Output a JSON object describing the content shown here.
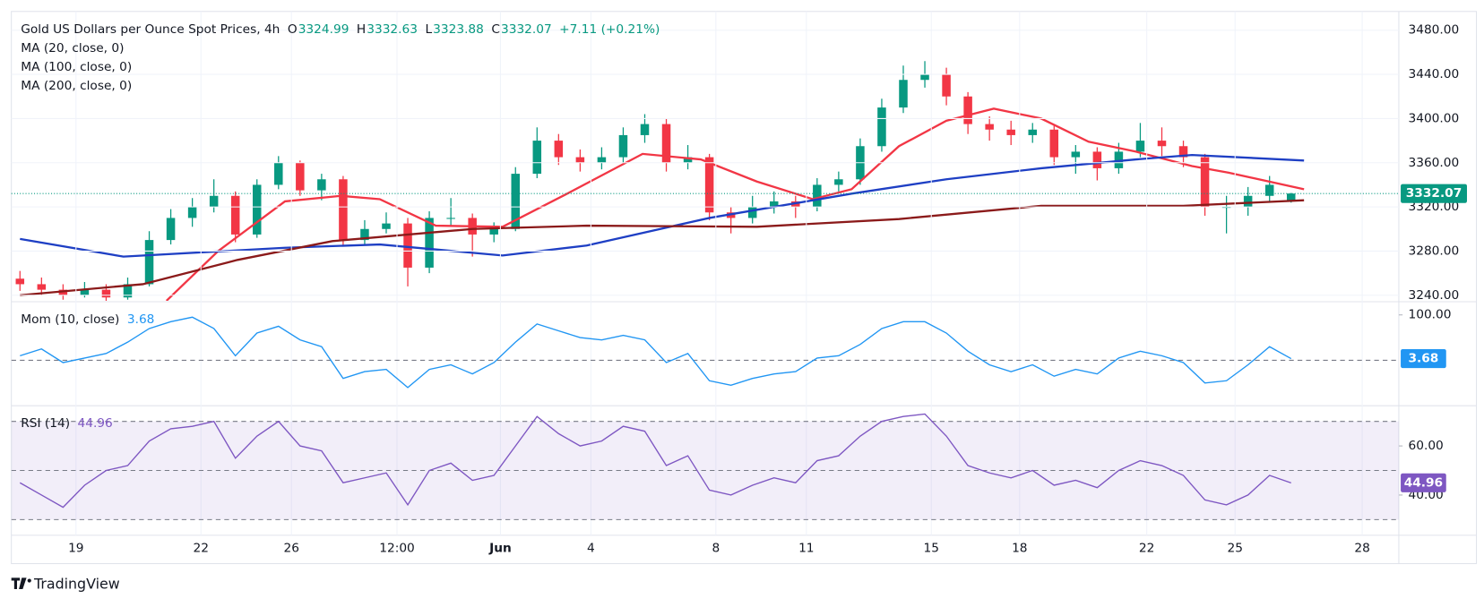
{
  "chart_data": {
    "type": "candlestick",
    "title": "Gold US Dollars per Ounce Spot Prices, 4h",
    "ohlc_labels": [
      "O",
      "H",
      "L",
      "C"
    ],
    "change_label": "+7.11 (+0.21%)",
    "up_color": "#089981",
    "down_color": "#f23645",
    "open": [
      3255,
      3250,
      3245,
      3240,
      3245,
      3238,
      3250,
      3290,
      3310,
      3320,
      3330,
      3295,
      3340,
      3360,
      3335,
      3345,
      3290,
      3300,
      3305,
      3265,
      3310,
      3310,
      3295,
      3300,
      3350,
      3380,
      3365,
      3360,
      3365,
      3385,
      3395,
      3360,
      3365,
      3315,
      3310,
      3320,
      3325,
      3320,
      3340,
      3345,
      3375,
      3410,
      3435,
      3440,
      3420,
      3395,
      3390,
      3385,
      3390,
      3365,
      3370,
      3355,
      3370,
      3380,
      3375,
      3365,
      3320,
      3320,
      3330,
      3324.99
    ],
    "high": [
      3262,
      3256,
      3250,
      3252,
      3250,
      3256,
      3298,
      3318,
      3328,
      3345,
      3334,
      3345,
      3366,
      3362,
      3350,
      3348,
      3308,
      3315,
      3310,
      3316,
      3328,
      3314,
      3306,
      3356,
      3392,
      3386,
      3372,
      3374,
      3392,
      3404,
      3400,
      3376,
      3368,
      3320,
      3330,
      3334,
      3330,
      3346,
      3352,
      3382,
      3418,
      3448,
      3452,
      3446,
      3424,
      3402,
      3398,
      3396,
      3394,
      3376,
      3374,
      3378,
      3396,
      3392,
      3380,
      3368,
      3330,
      3338,
      3348,
      3332.63
    ],
    "low": [
      3244,
      3240,
      3236,
      3238,
      3232,
      3236,
      3248,
      3286,
      3302,
      3315,
      3288,
      3292,
      3336,
      3330,
      3326,
      3284,
      3285,
      3296,
      3248,
      3260,
      3302,
      3275,
      3288,
      3298,
      3346,
      3358,
      3352,
      3354,
      3360,
      3378,
      3352,
      3354,
      3308,
      3296,
      3305,
      3314,
      3310,
      3316,
      3334,
      3340,
      3370,
      3405,
      3428,
      3412,
      3386,
      3380,
      3376,
      3378,
      3358,
      3350,
      3344,
      3350,
      3365,
      3366,
      3356,
      3312,
      3296,
      3312,
      3324,
      3323.88
    ],
    "close": [
      3250,
      3245,
      3240,
      3245,
      3238,
      3250,
      3290,
      3310,
      3320,
      3330,
      3295,
      3340,
      3360,
      3335,
      3345,
      3290,
      3300,
      3305,
      3265,
      3310,
      3310,
      3295,
      3300,
      3350,
      3380,
      3365,
      3360,
      3365,
      3385,
      3395,
      3360,
      3365,
      3315,
      3310,
      3320,
      3325,
      3320,
      3340,
      3345,
      3375,
      3410,
      3435,
      3440,
      3420,
      3395,
      3390,
      3385,
      3390,
      3365,
      3370,
      3355,
      3370,
      3380,
      3375,
      3365,
      3320,
      3320,
      3330,
      3340,
      3332.07
    ],
    "last_color": "#089981",
    "series": [
      {
        "name": "MA (20, close, 0)",
        "color": "#f23645",
        "x": [
          6.8,
          9.2,
          12.3,
          14.9,
          16.7,
          19.3,
          22.4,
          25.4,
          28.9,
          31.6,
          34.2,
          36.8,
          38.6,
          40.8,
          43,
          45.2,
          47.4,
          49.6,
          51.8,
          54.4,
          56.1,
          59.6
        ],
        "values": [
          3235,
          3280,
          3325,
          3330,
          3327,
          3303,
          3302,
          3332,
          3368,
          3363,
          3343,
          3327,
          3336,
          3375,
          3398,
          3409,
          3400,
          3379,
          3370,
          3357,
          3351,
          3336
        ]
      },
      {
        "name": "MA (100, close, 0)",
        "color": "#1e3fc4",
        "x": [
          0,
          4.8,
          12.3,
          16.7,
          22.4,
          26.3,
          32,
          38.6,
          43,
          47.4,
          51.8,
          54.4,
          59.6
        ],
        "values": [
          3291,
          3275,
          3283,
          3286,
          3276,
          3285,
          3310,
          3332,
          3345,
          3355,
          3363,
          3367,
          3362
        ]
      },
      {
        "name": "MA (200, close, 0)",
        "color": "#8b1a1a",
        "x": [
          0,
          5.7,
          10.1,
          14.5,
          21,
          26.3,
          34.2,
          40.8,
          47.4,
          54,
          59.6
        ],
        "values": [
          3240,
          3250,
          3272,
          3289,
          3300,
          3303,
          3302,
          3309,
          3321,
          3321,
          3326
        ]
      }
    ],
    "xlim": [
      -0.4,
      64
    ],
    "xticks": [
      {
        "value": 2.6,
        "label": "19"
      },
      {
        "value": 8.4,
        "label": "22"
      },
      {
        "value": 12.6,
        "label": "26"
      },
      {
        "value": 17.5,
        "label": "12:00"
      },
      {
        "value": 22.3,
        "label": "Jun"
      },
      {
        "value": 26.5,
        "label": "4"
      },
      {
        "value": 32.3,
        "label": "8"
      },
      {
        "value": 36.5,
        "label": "11"
      },
      {
        "value": 42.3,
        "label": "15"
      },
      {
        "value": 46.4,
        "label": "18"
      },
      {
        "value": 52.3,
        "label": "22"
      },
      {
        "value": 56.4,
        "label": "25"
      },
      {
        "value": 62.3,
        "label": "28"
      }
    ],
    "ylim": [
      3235,
      3497
    ],
    "yticks": [
      {
        "value": 3240,
        "label": "3240.00"
      },
      {
        "value": 3280,
        "label": "3280.00"
      },
      {
        "value": 3320,
        "label": "3320.00"
      },
      {
        "value": 3360,
        "label": "3360.00"
      },
      {
        "value": 3400,
        "label": "3400.00"
      },
      {
        "value": 3440,
        "label": "3440.00"
      },
      {
        "value": 3480,
        "label": "3480.00"
      }
    ],
    "grid": true,
    "momentum": {
      "name": "Mom (10, close)",
      "color": "#2196f3",
      "values": [
        10,
        25,
        -5,
        5,
        15,
        40,
        70,
        85,
        95,
        70,
        10,
        60,
        75,
        45,
        30,
        -40,
        -25,
        -20,
        -60,
        -20,
        -10,
        -30,
        -5,
        40,
        80,
        65,
        50,
        45,
        55,
        45,
        -5,
        15,
        -45,
        -55,
        -40,
        -30,
        -25,
        5,
        10,
        35,
        70,
        85,
        85,
        60,
        20,
        -10,
        -25,
        -10,
        -35,
        -20,
        -30,
        5,
        20,
        10,
        -5,
        -50,
        -45,
        -10,
        30,
        3.68
      ],
      "ylim": [
        -98,
        127
      ],
      "yticks": [
        {
          "value": 100,
          "label": "100.00"
        }
      ],
      "hlines": [
        0
      ]
    },
    "rsi": {
      "name": "RSI (14)",
      "color": "#7e57c2",
      "values": [
        45,
        40,
        35,
        44,
        50,
        52,
        62,
        67,
        68,
        70,
        55,
        64,
        70,
        60,
        58,
        45,
        47,
        49,
        36,
        50,
        53,
        46,
        48,
        60,
        72,
        65,
        60,
        62,
        68,
        66,
        52,
        56,
        42,
        40,
        44,
        47,
        45,
        54,
        56,
        64,
        70,
        72,
        73,
        64,
        52,
        49,
        47,
        50,
        44,
        46,
        43,
        50,
        54,
        52,
        48,
        38,
        36,
        40,
        48,
        44.96
      ],
      "ylim": [
        24,
        76
      ],
      "yticks": [
        {
          "value": 40,
          "label": "40.00"
        },
        {
          "value": 60,
          "label": "60.00"
        }
      ],
      "hlines": [
        30,
        50,
        70
      ],
      "band": [
        30,
        70
      ]
    }
  },
  "footer": {
    "brand": "TradingView"
  }
}
